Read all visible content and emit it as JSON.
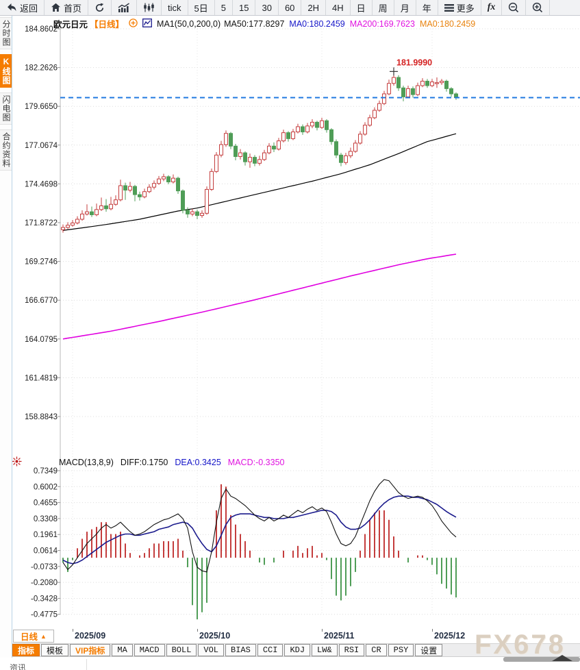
{
  "colors": {
    "accent": "#f57c00",
    "up": "#c43c3c",
    "down": "#4f9d57",
    "blue_text": "#1515c8",
    "magenta_text": "#e013e0",
    "orange_text": "#e8820d",
    "price_line": "#1f78e0",
    "diff_line": "#111111",
    "dea_line": "#1a1a8c",
    "ma50_line": "#000000",
    "ma200_line": "#e000e0",
    "grid": "#dcdcdc",
    "high_label": "#d42222",
    "axis_text": "#1e1e1e"
  },
  "toolbar": {
    "items": [
      {
        "name": "back-button",
        "label": "返回",
        "icon": "back-arrow"
      },
      {
        "name": "home-button",
        "label": "首页",
        "icon": "home"
      },
      {
        "name": "refresh-button",
        "label": "",
        "icon": "refresh"
      },
      {
        "name": "line-chart-button",
        "label": "",
        "icon": "line-chart"
      },
      {
        "name": "candlestick-button",
        "label": "",
        "icon": "candlestick"
      },
      {
        "name": "tick-button",
        "label": "tick"
      },
      {
        "name": "period-5day-button",
        "label": "5日"
      },
      {
        "name": "period-5-button",
        "label": "5"
      },
      {
        "name": "period-15-button",
        "label": "15"
      },
      {
        "name": "period-30-button",
        "label": "30"
      },
      {
        "name": "period-60-button",
        "label": "60"
      },
      {
        "name": "period-2h-button",
        "label": "2H"
      },
      {
        "name": "period-4h-button",
        "label": "4H"
      },
      {
        "name": "period-day-button",
        "label": "日"
      },
      {
        "name": "period-week-button",
        "label": "周"
      },
      {
        "name": "period-month-button",
        "label": "月"
      },
      {
        "name": "period-year-button",
        "label": "年"
      },
      {
        "name": "more-button",
        "label": "更多",
        "icon": "menu"
      },
      {
        "name": "fx-button",
        "label": "fx",
        "style": "fx"
      },
      {
        "name": "zoom-out-button",
        "label": "",
        "icon": "zoom-out"
      },
      {
        "name": "zoom-in-button",
        "label": "",
        "icon": "zoom-in"
      }
    ]
  },
  "sidebar": {
    "items": [
      {
        "name": "sidebar-item-time-chart",
        "label": "分时图",
        "selected": false
      },
      {
        "name": "sidebar-item-kline-chart",
        "label": "K线图",
        "selected": true
      },
      {
        "name": "sidebar-item-lightning-chart",
        "label": "闪电图",
        "selected": false
      },
      {
        "name": "sidebar-item-contract-info",
        "label": "合约资料",
        "selected": false
      }
    ]
  },
  "chart_header": {
    "symbol": "欧元日元",
    "period": "【日线】",
    "ma_def": "MA1(50,0,200,0)",
    "ma50": "MA50:177.8297",
    "ma0_blue": "MA0:180.2459",
    "ma200": "MA200:169.7623",
    "ma0_orange": "MA0:180.2459"
  },
  "macd_header": {
    "title": "MACD(13,8,9)",
    "diff": "DIFF:0.1750",
    "dea": "DEA:0.3425",
    "macd": "MACD:-0.3350"
  },
  "x_axis": {
    "period_label": "日线",
    "period_arrow": "▲"
  },
  "bottom_toolbar": {
    "items": [
      {
        "name": "indicator-tab",
        "label": "指标",
        "style": "selected",
        "cjk": true
      },
      {
        "name": "template-tab",
        "label": "模板",
        "cjk": true
      },
      {
        "name": "vip-indicator-tab",
        "label": "VIP指标",
        "style": "vip",
        "cjk": true
      },
      {
        "name": "ma-tab",
        "label": "MA"
      },
      {
        "name": "macd-tab",
        "label": "MACD"
      },
      {
        "name": "boll-tab",
        "label": "BOLL"
      },
      {
        "name": "vol-tab",
        "label": "VOL"
      },
      {
        "name": "bias-tab",
        "label": "BIAS"
      },
      {
        "name": "cci-tab",
        "label": "CCI"
      },
      {
        "name": "kdj-tab",
        "label": "KDJ"
      },
      {
        "name": "lw-tab",
        "label": "LW&"
      },
      {
        "name": "rsi-tab",
        "label": "RSI"
      },
      {
        "name": "cr-tab",
        "label": "CR"
      },
      {
        "name": "psy-tab",
        "label": "PSY"
      },
      {
        "name": "settings-tab",
        "label": "设置",
        "cjk": true
      }
    ]
  },
  "news_tab_label": "资讯",
  "watermark": "FX678",
  "chart_data": {
    "type": "candlestick+macd",
    "symbol": "EUR/JPY daily (欧元日元 日线)",
    "price_axis_labels": [
      "184.8602",
      "182.2626",
      "179.6650",
      "177.0674",
      "174.4698",
      "171.8722",
      "169.2746",
      "166.6770",
      "164.0795",
      "161.4819",
      "158.8843"
    ],
    "macd_axis_labels": [
      "0.7349",
      "0.6002",
      "0.4655",
      "0.3308",
      "0.1961",
      "0.0614",
      "-0.0733",
      "-0.2080",
      "-0.3428",
      "-0.4775"
    ],
    "months": [
      {
        "label": "2025/09",
        "index": 2
      },
      {
        "label": "2025/10",
        "index": 28
      },
      {
        "label": "2025/11",
        "index": 54
      },
      {
        "label": "2025/12",
        "index": 77
      }
    ],
    "current_price": 180.2459,
    "high_marker": {
      "index": 69,
      "price": 181.999,
      "label": "181.9990"
    },
    "candles": [
      [
        171.4,
        171.75,
        171.2,
        171.55
      ],
      [
        171.55,
        171.9,
        171.45,
        171.7
      ],
      [
        171.7,
        172.05,
        171.6,
        171.85
      ],
      [
        171.85,
        172.3,
        171.75,
        172.1
      ],
      [
        172.1,
        172.7,
        172.0,
        172.45
      ],
      [
        172.45,
        173.1,
        172.35,
        172.6
      ],
      [
        172.6,
        172.95,
        172.25,
        172.4
      ],
      [
        172.4,
        173.15,
        172.3,
        172.75
      ],
      [
        172.75,
        173.55,
        172.65,
        173.0
      ],
      [
        173.0,
        173.45,
        172.6,
        172.8
      ],
      [
        172.8,
        173.6,
        172.7,
        173.1
      ],
      [
        173.1,
        173.7,
        173.0,
        173.4
      ],
      [
        173.4,
        174.75,
        173.3,
        174.35
      ],
      [
        174.35,
        174.55,
        173.4,
        174.05
      ],
      [
        174.05,
        174.6,
        173.9,
        174.3
      ],
      [
        174.3,
        174.4,
        173.3,
        173.75
      ],
      [
        173.75,
        173.95,
        173.35,
        173.6
      ],
      [
        173.6,
        174.15,
        173.5,
        173.95
      ],
      [
        173.95,
        174.45,
        173.85,
        174.25
      ],
      [
        174.25,
        174.7,
        174.1,
        174.5
      ],
      [
        174.5,
        175.0,
        174.4,
        174.8
      ],
      [
        174.8,
        175.15,
        174.65,
        174.95
      ],
      [
        174.95,
        175.05,
        174.45,
        174.6
      ],
      [
        174.6,
        175.1,
        174.5,
        174.85
      ],
      [
        174.85,
        174.95,
        173.8,
        174.0
      ],
      [
        174.0,
        174.1,
        172.5,
        172.7
      ],
      [
        172.7,
        172.9,
        172.2,
        172.45
      ],
      [
        172.45,
        172.8,
        172.3,
        172.6
      ],
      [
        172.6,
        172.75,
        172.1,
        172.35
      ],
      [
        172.35,
        172.7,
        172.2,
        172.5
      ],
      [
        172.5,
        174.3,
        172.4,
        174.1
      ],
      [
        174.1,
        175.5,
        174.0,
        175.3
      ],
      [
        175.3,
        176.6,
        175.2,
        176.4
      ],
      [
        176.4,
        177.35,
        176.25,
        177.1
      ],
      [
        177.1,
        178.05,
        176.95,
        177.85
      ],
      [
        177.85,
        177.95,
        176.8,
        177.0
      ],
      [
        177.0,
        177.15,
        176.05,
        176.3
      ],
      [
        176.3,
        176.8,
        176.1,
        176.55
      ],
      [
        176.55,
        176.65,
        175.7,
        175.95
      ],
      [
        175.95,
        176.5,
        175.55,
        176.25
      ],
      [
        176.25,
        176.4,
        175.65,
        175.85
      ],
      [
        175.85,
        176.35,
        175.7,
        176.1
      ],
      [
        176.1,
        176.75,
        176.0,
        176.55
      ],
      [
        176.55,
        177.2,
        176.45,
        177.0
      ],
      [
        177.0,
        177.25,
        176.6,
        176.8
      ],
      [
        176.8,
        177.55,
        176.7,
        177.35
      ],
      [
        177.35,
        178.1,
        177.25,
        177.9
      ],
      [
        177.9,
        178.0,
        177.3,
        177.5
      ],
      [
        177.5,
        178.15,
        177.4,
        177.95
      ],
      [
        177.95,
        178.5,
        177.85,
        178.3
      ],
      [
        178.3,
        178.45,
        177.75,
        177.95
      ],
      [
        177.95,
        178.55,
        177.85,
        178.35
      ],
      [
        178.35,
        178.8,
        178.2,
        178.6
      ],
      [
        178.6,
        178.7,
        178.05,
        178.25
      ],
      [
        178.25,
        178.9,
        178.15,
        178.7
      ],
      [
        178.7,
        178.8,
        177.9,
        178.1
      ],
      [
        178.1,
        178.2,
        177.1,
        177.3
      ],
      [
        177.3,
        177.45,
        176.2,
        176.4
      ],
      [
        176.4,
        176.55,
        175.65,
        175.9
      ],
      [
        175.9,
        176.55,
        175.75,
        176.35
      ],
      [
        176.35,
        176.9,
        176.2,
        176.65
      ],
      [
        176.65,
        177.4,
        176.55,
        177.2
      ],
      [
        177.2,
        178.0,
        177.1,
        177.8
      ],
      [
        177.8,
        178.6,
        177.7,
        178.4
      ],
      [
        178.4,
        179.1,
        178.3,
        178.9
      ],
      [
        178.9,
        179.6,
        178.8,
        179.4
      ],
      [
        179.4,
        180.05,
        179.3,
        179.85
      ],
      [
        179.85,
        180.7,
        179.75,
        180.5
      ],
      [
        180.5,
        181.45,
        180.4,
        181.2
      ],
      [
        181.2,
        181.999,
        181.05,
        181.6
      ],
      [
        181.6,
        181.75,
        180.7,
        180.9
      ],
      [
        180.9,
        181.05,
        180.0,
        180.3
      ],
      [
        180.3,
        181.05,
        180.2,
        180.85
      ],
      [
        180.85,
        181.0,
        180.25,
        180.45
      ],
      [
        180.45,
        181.25,
        180.35,
        181.05
      ],
      [
        181.05,
        181.55,
        180.95,
        181.35
      ],
      [
        181.35,
        181.5,
        180.9,
        181.05
      ],
      [
        181.05,
        181.5,
        180.95,
        181.3
      ],
      [
        181.2,
        181.6,
        180.9,
        181.25
      ],
      [
        181.25,
        181.5,
        181.1,
        181.35
      ],
      [
        181.35,
        181.45,
        180.65,
        180.85
      ],
      [
        180.85,
        180.95,
        180.3,
        180.5
      ],
      [
        180.5,
        180.6,
        180.1,
        180.2459
      ]
    ],
    "ma50_points": [
      [
        0,
        171.35
      ],
      [
        8,
        171.7
      ],
      [
        16,
        172.1
      ],
      [
        24,
        172.65
      ],
      [
        28,
        172.85
      ],
      [
        34,
        173.3
      ],
      [
        40,
        173.75
      ],
      [
        46,
        174.2
      ],
      [
        52,
        174.65
      ],
      [
        58,
        175.15
      ],
      [
        64,
        175.75
      ],
      [
        70,
        176.5
      ],
      [
        76,
        177.3
      ],
      [
        82,
        177.8297
      ]
    ],
    "ma200_points": [
      [
        0,
        164.08
      ],
      [
        10,
        164.6
      ],
      [
        20,
        165.25
      ],
      [
        30,
        165.95
      ],
      [
        40,
        166.7
      ],
      [
        50,
        167.5
      ],
      [
        60,
        168.3
      ],
      [
        70,
        169.05
      ],
      [
        76,
        169.45
      ],
      [
        82,
        169.7623
      ]
    ],
    "macd": {
      "histogram_rule": "2*(diff-dea)",
      "diff": [
        -0.04,
        -0.1,
        -0.06,
        0.0,
        0.06,
        0.12,
        0.16,
        0.2,
        0.25,
        0.28,
        0.25,
        0.27,
        0.3,
        0.26,
        0.22,
        0.19,
        0.2,
        0.22,
        0.25,
        0.28,
        0.3,
        0.32,
        0.33,
        0.35,
        0.37,
        0.33,
        0.25,
        0.05,
        -0.08,
        -0.11,
        -0.12,
        0.05,
        0.3,
        0.5,
        0.58,
        0.52,
        0.5,
        0.47,
        0.44,
        0.4,
        0.36,
        0.33,
        0.31,
        0.34,
        0.31,
        0.33,
        0.36,
        0.34,
        0.37,
        0.4,
        0.38,
        0.41,
        0.43,
        0.4,
        0.42,
        0.39,
        0.3,
        0.2,
        0.12,
        0.1,
        0.12,
        0.18,
        0.28,
        0.38,
        0.48,
        0.56,
        0.62,
        0.66,
        0.65,
        0.6,
        0.55,
        0.52,
        0.5,
        0.51,
        0.52,
        0.51,
        0.48,
        0.44,
        0.38,
        0.31,
        0.26,
        0.21,
        0.175
      ],
      "dea": [
        -0.02,
        -0.04,
        -0.05,
        -0.04,
        -0.02,
        0.01,
        0.04,
        0.07,
        0.1,
        0.13,
        0.15,
        0.17,
        0.19,
        0.2,
        0.2,
        0.19,
        0.19,
        0.2,
        0.21,
        0.22,
        0.24,
        0.25,
        0.26,
        0.28,
        0.29,
        0.3,
        0.29,
        0.25,
        0.18,
        0.12,
        0.07,
        0.05,
        0.1,
        0.19,
        0.28,
        0.34,
        0.36,
        0.37,
        0.37,
        0.37,
        0.36,
        0.35,
        0.34,
        0.34,
        0.33,
        0.33,
        0.33,
        0.34,
        0.34,
        0.35,
        0.36,
        0.37,
        0.38,
        0.39,
        0.4,
        0.4,
        0.39,
        0.36,
        0.3,
        0.26,
        0.24,
        0.24,
        0.25,
        0.28,
        0.32,
        0.37,
        0.42,
        0.46,
        0.49,
        0.51,
        0.52,
        0.52,
        0.52,
        0.51,
        0.51,
        0.5,
        0.49,
        0.47,
        0.45,
        0.42,
        0.39,
        0.365,
        0.3425
      ]
    }
  }
}
